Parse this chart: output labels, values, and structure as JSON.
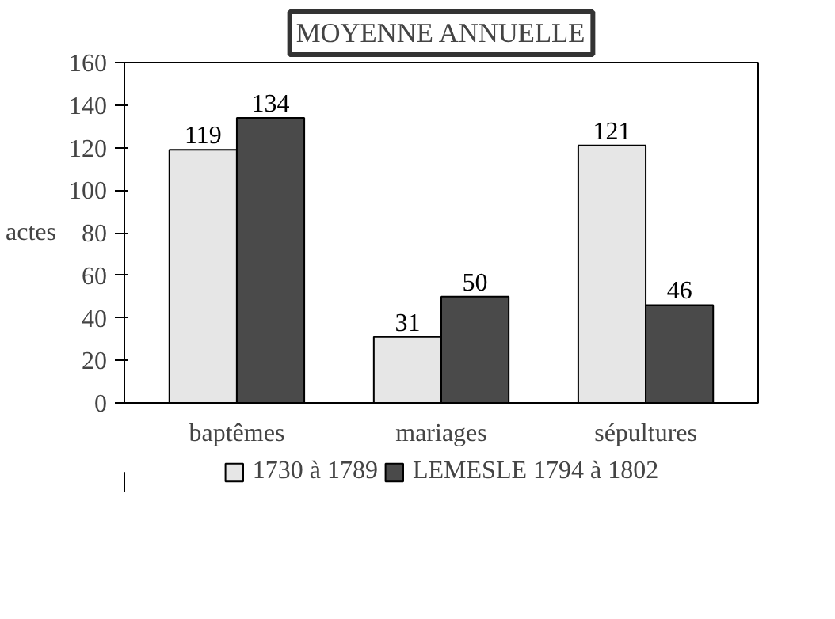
{
  "chart_data": {
    "type": "bar",
    "title": "MOYENNE ANNUELLE",
    "ylabel": "actes",
    "categories": [
      "baptêmes",
      "mariages",
      "sépultures"
    ],
    "series": [
      {
        "name": "1730 à 1789",
        "color": "#e6e6e6",
        "values": [
          119,
          31,
          121
        ]
      },
      {
        "name": "LEMESLE 1794 à 1802",
        "color": "#4a4a4a",
        "values": [
          134,
          50,
          46
        ]
      }
    ],
    "ylim": [
      0,
      160
    ],
    "yticks": [
      0,
      20,
      40,
      60,
      80,
      100,
      120,
      140,
      160
    ],
    "data_labels": true,
    "grid": false,
    "legend": "bottom"
  }
}
